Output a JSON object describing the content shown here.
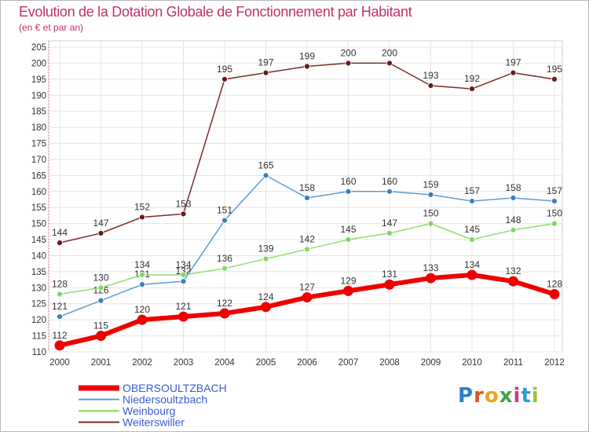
{
  "title": "Evolution de la Dotation Globale de Fonctionnement par Habitant",
  "subtitle": "(en € et par an)",
  "logo": {
    "text": "Proxiti",
    "letter_colors": [
      "#2a7fd4",
      "#e0532a",
      "#f0a020",
      "#3fa63f",
      "#d43a8a",
      "#2a9fd4",
      "#9ac43a"
    ]
  },
  "chart_data": {
    "type": "line",
    "title": "Evolution de la Dotation Globale de Fonctionnement par Habitant",
    "subtitle": "(en € et par an)",
    "categories": [
      "2000",
      "2001",
      "2002",
      "2003",
      "2004",
      "2005",
      "2006",
      "2007",
      "2008",
      "2009",
      "2010",
      "2011",
      "2012"
    ],
    "ylim": [
      110,
      205
    ],
    "ytick_step": 5,
    "grid": true,
    "legend_position": "bottom-left",
    "series": [
      {
        "name": "OBERSOULTZBACH",
        "color": "#ee0000",
        "highlight": true,
        "values": [
          112,
          115,
          120,
          121,
          122,
          124,
          127,
          129,
          131,
          133,
          134,
          132,
          128
        ]
      },
      {
        "name": "Niedersoultzbach",
        "color": "#5b9bd5",
        "marker": "#3a7fc0",
        "values": [
          121,
          126,
          131,
          132,
          151,
          165,
          158,
          160,
          160,
          159,
          157,
          158,
          157
        ]
      },
      {
        "name": "Weinbourg",
        "color": "#90dd70",
        "marker": "#80d860",
        "values": [
          128,
          130,
          134,
          134,
          136,
          139,
          142,
          145,
          147,
          150,
          145,
          148,
          150
        ]
      },
      {
        "name": "Weiterswiller",
        "color": "#7a2a2a",
        "marker": "#6a1a1a",
        "values": [
          144,
          147,
          152,
          153,
          195,
          197,
          199,
          200,
          200,
          193,
          192,
          197,
          195
        ]
      }
    ]
  }
}
